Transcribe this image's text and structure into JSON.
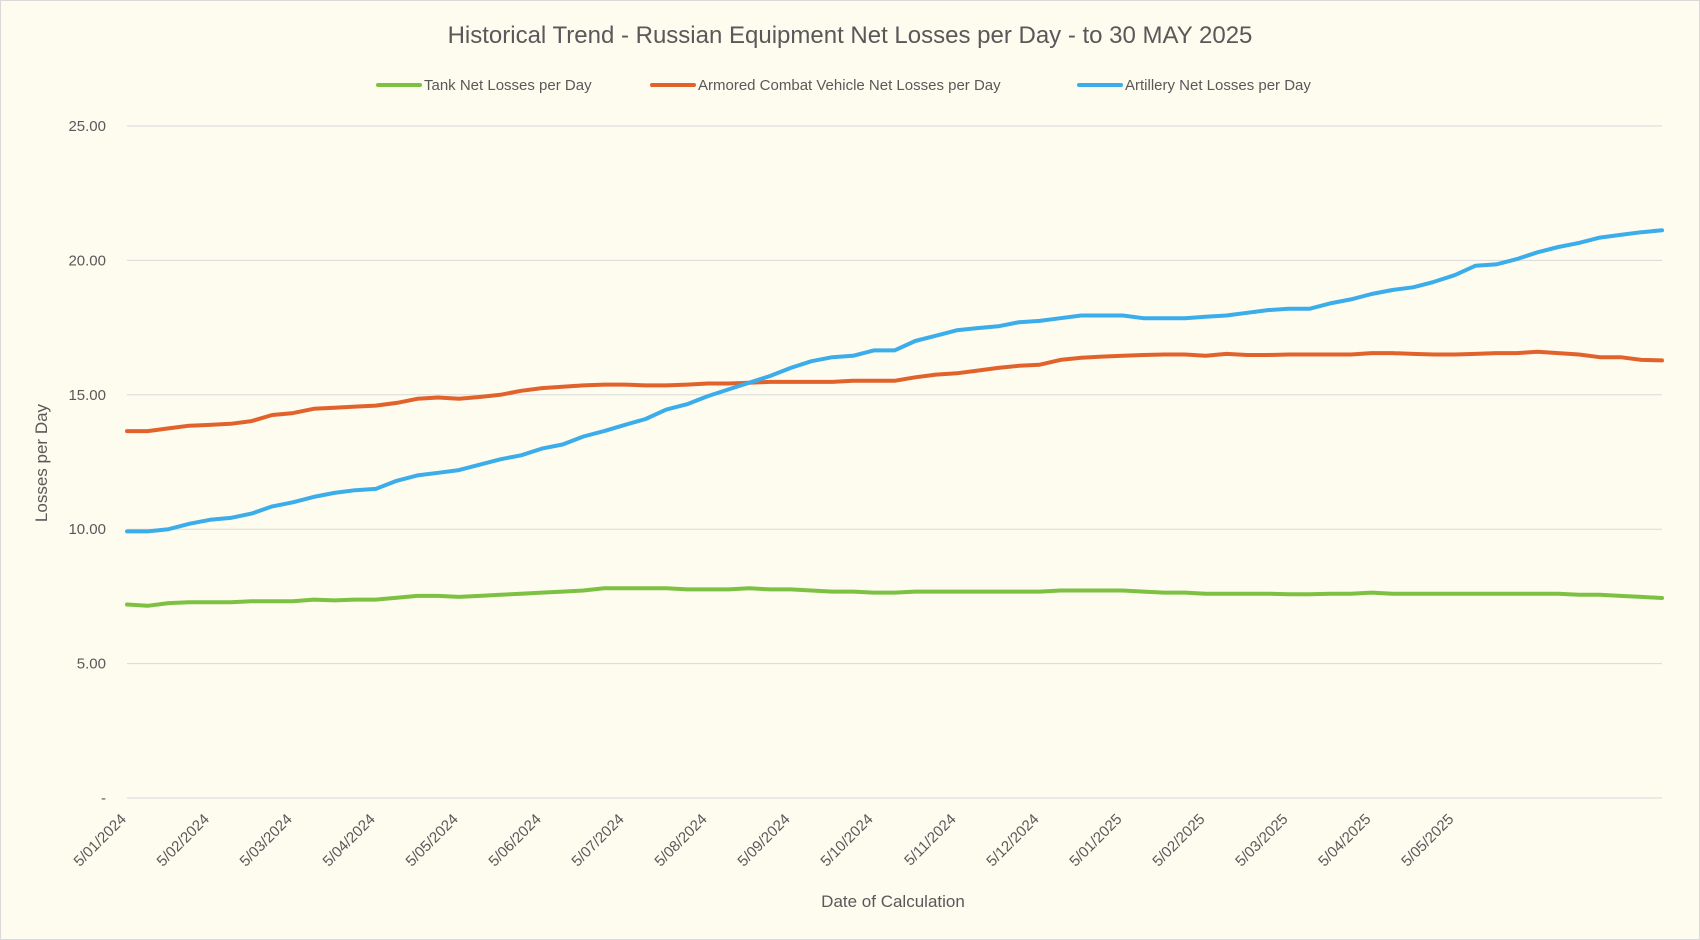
{
  "chart_data": {
    "type": "line",
    "title": "Historical Trend - Russian Equipment Net Losses per Day - to 30 MAY 2025",
    "xlabel": "Date of Calculation",
    "ylabel": "Losses per Day",
    "ylim": [
      0,
      25
    ],
    "y_ticks": [
      {
        "value": 0,
        "label": "-"
      },
      {
        "value": 5,
        "label": "5.00"
      },
      {
        "value": 10,
        "label": "10.00"
      },
      {
        "value": 15,
        "label": "15.00"
      },
      {
        "value": 20,
        "label": "20.00"
      },
      {
        "value": 25,
        "label": "25.00"
      }
    ],
    "x_tick_labels": [
      "5/01/2024",
      "5/02/2024",
      "5/03/2024",
      "5/04/2024",
      "5/05/2024",
      "5/06/2024",
      "5/07/2024",
      "5/08/2024",
      "5/09/2024",
      "5/10/2024",
      "5/11/2024",
      "5/12/2024",
      "5/01/2025",
      "5/02/2025",
      "5/03/2025",
      "5/04/2025",
      "5/05/2025"
    ],
    "points_per_month": 4,
    "grid": true,
    "legend_position": "top",
    "series": [
      {
        "name": "Tank Net Losses per Day",
        "color": "#7cc142",
        "values": [
          7.2,
          7.15,
          7.25,
          7.28,
          7.28,
          7.28,
          7.32,
          7.32,
          7.32,
          7.38,
          7.35,
          7.38,
          7.38,
          7.45,
          7.52,
          7.52,
          7.48,
          7.52,
          7.56,
          7.6,
          7.64,
          7.68,
          7.72,
          7.8,
          7.8,
          7.8,
          7.8,
          7.76,
          7.76,
          7.76,
          7.8,
          7.76,
          7.76,
          7.72,
          7.68,
          7.68,
          7.64,
          7.64,
          7.68,
          7.68,
          7.68,
          7.68,
          7.68,
          7.68,
          7.68,
          7.72,
          7.72,
          7.72,
          7.72,
          7.68,
          7.64,
          7.64,
          7.6,
          7.6,
          7.6,
          7.6,
          7.58,
          7.58,
          7.6,
          7.6,
          7.64,
          7.6,
          7.6,
          7.6,
          7.6,
          7.6,
          7.6,
          7.6,
          7.6,
          7.6,
          7.56,
          7.56,
          7.52,
          7.48,
          7.44
        ]
      },
      {
        "name": "Armored Combat Vehicle Net Losses per Day",
        "color": "#e2622c",
        "values": [
          13.65,
          13.65,
          13.75,
          13.85,
          13.88,
          13.92,
          14.02,
          14.25,
          14.32,
          14.48,
          14.52,
          14.56,
          14.6,
          14.7,
          14.85,
          14.9,
          14.85,
          14.92,
          15.0,
          15.15,
          15.25,
          15.3,
          15.35,
          15.38,
          15.38,
          15.35,
          15.35,
          15.38,
          15.42,
          15.42,
          15.45,
          15.48,
          15.48,
          15.48,
          15.48,
          15.52,
          15.52,
          15.52,
          15.65,
          15.75,
          15.8,
          15.9,
          16.0,
          16.08,
          16.12,
          16.3,
          16.38,
          16.42,
          16.45,
          16.48,
          16.5,
          16.5,
          16.45,
          16.52,
          16.48,
          16.48,
          16.5,
          16.5,
          16.5,
          16.5,
          16.55,
          16.55,
          16.52,
          16.5,
          16.5,
          16.52,
          16.55,
          16.55,
          16.6,
          16.55,
          16.5,
          16.4,
          16.4,
          16.3,
          16.28
        ]
      },
      {
        "name": "Artillery Net Losses per Day",
        "color": "#3badea",
        "values": [
          9.92,
          9.92,
          10.0,
          10.2,
          10.35,
          10.42,
          10.58,
          10.85,
          11.0,
          11.2,
          11.35,
          11.45,
          11.5,
          11.8,
          12.0,
          12.1,
          12.2,
          12.4,
          12.6,
          12.75,
          13.0,
          13.15,
          13.45,
          13.65,
          13.88,
          14.1,
          14.45,
          14.65,
          14.95,
          15.2,
          15.45,
          15.7,
          16.0,
          16.25,
          16.4,
          16.45,
          16.65,
          16.65,
          17.0,
          17.2,
          17.4,
          17.48,
          17.55,
          17.7,
          17.75,
          17.85,
          17.95,
          17.95,
          17.95,
          17.85,
          17.85,
          17.85,
          17.9,
          17.95,
          18.05,
          18.15,
          18.2,
          18.2,
          18.4,
          18.55,
          18.75,
          18.9,
          19.0,
          19.2,
          19.45,
          19.8,
          19.85,
          20.05,
          20.3,
          20.5,
          20.65,
          20.85,
          20.95,
          21.05,
          21.12
        ]
      }
    ]
  }
}
